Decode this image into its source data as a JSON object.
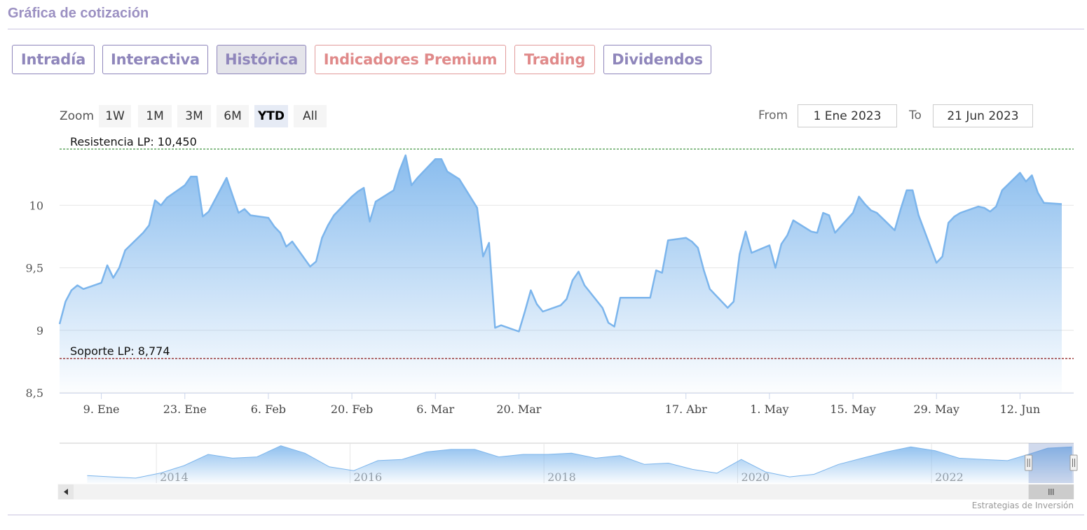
{
  "page": {
    "title": "Gráfica de cotización"
  },
  "tabs": [
    {
      "label": "Intradía",
      "active": false,
      "premium": false
    },
    {
      "label": "Interactiva",
      "active": false,
      "premium": false
    },
    {
      "label": "Histórica",
      "active": true,
      "premium": false
    },
    {
      "label": "Indicadores Premium",
      "active": false,
      "premium": true
    },
    {
      "label": "Trading",
      "active": false,
      "premium": true
    },
    {
      "label": "Dividendos",
      "active": false,
      "premium": false
    }
  ],
  "range_selector": {
    "zoom_label": "Zoom",
    "buttons": [
      "1W",
      "1M",
      "3M",
      "6M",
      "YTD",
      "All"
    ],
    "selected": "YTD",
    "from_label": "From",
    "from_value": "1 Ene 2023",
    "to_label": "To",
    "to_value": "21 Jun 2023"
  },
  "colors": {
    "accent": "#8f86bb",
    "premium": "#e08a8a",
    "series_line": "#7cb5ec",
    "resistance": "#2e8b2e",
    "support": "#8b1a1a"
  },
  "chart_data": {
    "type": "area",
    "title": "",
    "xlabel": "",
    "ylabel": "",
    "ylim": [
      8.5,
      10.5
    ],
    "yticks": [
      8.5,
      9,
      9.5,
      10
    ],
    "ytick_labels": [
      "8,5",
      "9",
      "9,5",
      "10"
    ],
    "xlim": [
      "2023-01-02",
      "2023-06-21"
    ],
    "xticks": [
      "2023-01-09",
      "2023-01-23",
      "2023-02-06",
      "2023-02-20",
      "2023-03-06",
      "2023-03-20",
      "2023-04-17",
      "2023-05-01",
      "2023-05-15",
      "2023-05-29",
      "2023-06-12"
    ],
    "xtick_labels": [
      "9. Ene",
      "23. Ene",
      "6. Feb",
      "20. Feb",
      "6. Mar",
      "20. Mar",
      "17. Abr",
      "1. May",
      "15. May",
      "29. May",
      "12. Jun"
    ],
    "grid": true,
    "legend": "none",
    "plot_lines": [
      {
        "label": "Resistencia LP: 10,450",
        "value": 10.45,
        "color": "#2e8b2e"
      },
      {
        "label": "Soporte LP: 8,774",
        "value": 8.774,
        "color": "#8b1a1a"
      }
    ],
    "series": [
      {
        "values": [
          [
            "2023-01-02",
            9.05
          ],
          [
            "2023-01-03",
            9.23
          ],
          [
            "2023-01-04",
            9.32
          ],
          [
            "2023-01-05",
            9.36
          ],
          [
            "2023-01-06",
            9.33
          ],
          [
            "2023-01-09",
            9.38
          ],
          [
            "2023-01-10",
            9.52
          ],
          [
            "2023-01-11",
            9.42
          ],
          [
            "2023-01-12",
            9.5
          ],
          [
            "2023-01-13",
            9.64
          ],
          [
            "2023-01-16",
            9.78
          ],
          [
            "2023-01-17",
            9.84
          ],
          [
            "2023-01-18",
            10.04
          ],
          [
            "2023-01-19",
            10.0
          ],
          [
            "2023-01-20",
            10.06
          ],
          [
            "2023-01-23",
            10.16
          ],
          [
            "2023-01-24",
            10.23
          ],
          [
            "2023-01-25",
            10.23
          ],
          [
            "2023-01-26",
            9.91
          ],
          [
            "2023-01-27",
            9.95
          ],
          [
            "2023-01-30",
            10.22
          ],
          [
            "2023-01-31",
            10.08
          ],
          [
            "2023-02-01",
            9.94
          ],
          [
            "2023-02-02",
            9.97
          ],
          [
            "2023-02-03",
            9.92
          ],
          [
            "2023-02-06",
            9.9
          ],
          [
            "2023-02-07",
            9.83
          ],
          [
            "2023-02-08",
            9.78
          ],
          [
            "2023-02-09",
            9.67
          ],
          [
            "2023-02-10",
            9.71
          ],
          [
            "2023-02-13",
            9.51
          ],
          [
            "2023-02-14",
            9.55
          ],
          [
            "2023-02-15",
            9.74
          ],
          [
            "2023-02-16",
            9.84
          ],
          [
            "2023-02-17",
            9.92
          ],
          [
            "2023-02-20",
            10.07
          ],
          [
            "2023-02-21",
            10.11
          ],
          [
            "2023-02-22",
            10.14
          ],
          [
            "2023-02-23",
            9.87
          ],
          [
            "2023-02-24",
            10.03
          ],
          [
            "2023-02-27",
            10.12
          ],
          [
            "2023-02-28",
            10.28
          ],
          [
            "2023-03-01",
            10.4
          ],
          [
            "2023-03-02",
            10.16
          ],
          [
            "2023-03-03",
            10.22
          ],
          [
            "2023-03-06",
            10.37
          ],
          [
            "2023-03-07",
            10.37
          ],
          [
            "2023-03-08",
            10.27
          ],
          [
            "2023-03-09",
            10.24
          ],
          [
            "2023-03-10",
            10.21
          ],
          [
            "2023-03-13",
            9.98
          ],
          [
            "2023-03-14",
            9.59
          ],
          [
            "2023-03-15",
            9.7
          ],
          [
            "2023-03-16",
            9.02
          ],
          [
            "2023-03-17",
            9.04
          ],
          [
            "2023-03-20",
            8.99
          ],
          [
            "2023-03-21",
            9.15
          ],
          [
            "2023-03-22",
            9.32
          ],
          [
            "2023-03-23",
            9.21
          ],
          [
            "2023-03-24",
            9.15
          ],
          [
            "2023-03-27",
            9.2
          ],
          [
            "2023-03-28",
            9.25
          ],
          [
            "2023-03-29",
            9.4
          ],
          [
            "2023-03-30",
            9.47
          ],
          [
            "2023-03-31",
            9.36
          ],
          [
            "2023-04-03",
            9.18
          ],
          [
            "2023-04-04",
            9.06
          ],
          [
            "2023-04-05",
            9.03
          ],
          [
            "2023-04-06",
            9.26
          ],
          [
            "2023-04-11",
            9.26
          ],
          [
            "2023-04-12",
            9.48
          ],
          [
            "2023-04-13",
            9.46
          ],
          [
            "2023-04-14",
            9.72
          ],
          [
            "2023-04-17",
            9.74
          ],
          [
            "2023-04-18",
            9.71
          ],
          [
            "2023-04-19",
            9.66
          ],
          [
            "2023-04-20",
            9.48
          ],
          [
            "2023-04-21",
            9.33
          ],
          [
            "2023-04-24",
            9.18
          ],
          [
            "2023-04-25",
            9.23
          ],
          [
            "2023-04-26",
            9.61
          ],
          [
            "2023-04-27",
            9.79
          ],
          [
            "2023-04-28",
            9.62
          ],
          [
            "2023-05-01",
            9.68
          ],
          [
            "2023-05-02",
            9.5
          ],
          [
            "2023-05-03",
            9.69
          ],
          [
            "2023-05-04",
            9.76
          ],
          [
            "2023-05-05",
            9.88
          ],
          [
            "2023-05-08",
            9.79
          ],
          [
            "2023-05-09",
            9.78
          ],
          [
            "2023-05-10",
            9.94
          ],
          [
            "2023-05-11",
            9.92
          ],
          [
            "2023-05-12",
            9.78
          ],
          [
            "2023-05-15",
            9.94
          ],
          [
            "2023-05-16",
            10.07
          ],
          [
            "2023-05-17",
            10.01
          ],
          [
            "2023-05-18",
            9.96
          ],
          [
            "2023-05-19",
            9.94
          ],
          [
            "2023-05-22",
            9.8
          ],
          [
            "2023-05-23",
            9.97
          ],
          [
            "2023-05-24",
            10.12
          ],
          [
            "2023-05-25",
            10.12
          ],
          [
            "2023-05-26",
            9.92
          ],
          [
            "2023-05-29",
            9.54
          ],
          [
            "2023-05-30",
            9.59
          ],
          [
            "2023-05-31",
            9.86
          ],
          [
            "2023-06-01",
            9.91
          ],
          [
            "2023-06-02",
            9.94
          ],
          [
            "2023-06-05",
            9.99
          ],
          [
            "2023-06-06",
            9.98
          ],
          [
            "2023-06-07",
            9.95
          ],
          [
            "2023-06-08",
            9.99
          ],
          [
            "2023-06-09",
            10.12
          ],
          [
            "2023-06-12",
            10.26
          ],
          [
            "2023-06-13",
            10.19
          ],
          [
            "2023-06-14",
            10.24
          ],
          [
            "2023-06-15",
            10.1
          ],
          [
            "2023-06-16",
            10.02
          ],
          [
            "2023-06-19",
            10.01
          ]
        ]
      }
    ],
    "navigator": {
      "type": "area",
      "xlim": [
        "2013-01-01",
        "2023-06-21"
      ],
      "tick_labels": [
        "2014",
        "2016",
        "2018",
        "2020",
        "2022"
      ],
      "tick_dates": [
        "2014-01-01",
        "2016-01-01",
        "2018-01-01",
        "2020-01-01",
        "2022-01-01"
      ],
      "selected_range": [
        "2023-01-02",
        "2023-06-21"
      ],
      "series": [
        [
          "2013-04",
          6.9
        ],
        [
          "2013-07",
          6.8
        ],
        [
          "2013-10",
          6.7
        ],
        [
          "2014-01",
          7.1
        ],
        [
          "2014-04",
          7.7
        ],
        [
          "2014-07",
          8.6
        ],
        [
          "2014-10",
          8.3
        ],
        [
          "2015-01",
          8.4
        ],
        [
          "2015-04",
          9.3
        ],
        [
          "2015-07",
          8.7
        ],
        [
          "2015-10",
          7.6
        ],
        [
          "2016-01",
          7.3
        ],
        [
          "2016-04",
          8.1
        ],
        [
          "2016-07",
          8.2
        ],
        [
          "2016-10",
          8.8
        ],
        [
          "2017-01",
          9.0
        ],
        [
          "2017-04",
          9.0
        ],
        [
          "2017-07",
          8.4
        ],
        [
          "2017-10",
          8.6
        ],
        [
          "2018-01",
          8.6
        ],
        [
          "2018-04",
          8.7
        ],
        [
          "2018-07",
          8.3
        ],
        [
          "2018-10",
          8.5
        ],
        [
          "2019-01",
          7.8
        ],
        [
          "2019-04",
          7.9
        ],
        [
          "2019-07",
          7.4
        ],
        [
          "2019-10",
          7.1
        ],
        [
          "2020-01",
          8.2
        ],
        [
          "2020-04",
          7.2
        ],
        [
          "2020-07",
          6.8
        ],
        [
          "2020-10",
          7.0
        ],
        [
          "2021-01",
          7.8
        ],
        [
          "2021-04",
          8.3
        ],
        [
          "2021-07",
          8.8
        ],
        [
          "2021-10",
          9.2
        ],
        [
          "2022-01",
          8.9
        ],
        [
          "2022-04",
          8.3
        ],
        [
          "2022-07",
          8.2
        ],
        [
          "2022-10",
          8.1
        ],
        [
          "2023-01",
          8.7
        ],
        [
          "2023-03",
          9.1
        ],
        [
          "2023-06",
          9.2
        ]
      ]
    }
  },
  "credits": "Estrategias de Inversión"
}
